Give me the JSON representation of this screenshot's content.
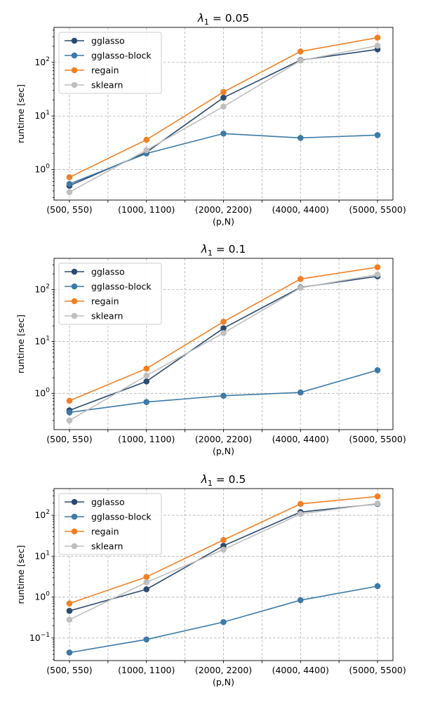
{
  "chart_data": [
    {
      "type": "line",
      "title_prefix": "λ",
      "title_sub": "1",
      "title_suffix": " = 0.05",
      "xlabel": "(p,N)",
      "ylabel": "runtime [sec]",
      "yscale": "log",
      "ylim": [
        0.27,
        450
      ],
      "yticks": [
        {
          "value": 1,
          "base": "10",
          "exp": "0"
        },
        {
          "value": 10,
          "base": "10",
          "exp": "1"
        },
        {
          "value": 100,
          "base": "10",
          "exp": "2"
        }
      ],
      "grid": true,
      "legend": "upper-left",
      "categories": [
        "(500, 550)",
        "(1000, 1100)",
        "(2000, 2200)",
        "(4000, 4400)",
        "(5000, 5500)"
      ],
      "series": [
        {
          "name": "gglasso",
          "color": "#2b4a6f",
          "values": [
            0.5,
            2.1,
            22,
            110,
            175
          ]
        },
        {
          "name": "gglasso-block",
          "color": "#3d7aa6",
          "values": [
            0.54,
            2.0,
            4.7,
            3.9,
            4.4
          ]
        },
        {
          "name": "regain",
          "color": "#f08025",
          "values": [
            0.72,
            3.6,
            28,
            160,
            290
          ]
        },
        {
          "name": "sklearn",
          "color": "#bfbfbf",
          "values": [
            0.38,
            2.3,
            15,
            108,
            205
          ]
        }
      ]
    },
    {
      "type": "line",
      "title_prefix": "λ",
      "title_sub": "1",
      "title_suffix": " = 0.1",
      "xlabel": "(p,N)",
      "ylabel": "runtime [sec]",
      "yscale": "log",
      "ylim": [
        0.2,
        400
      ],
      "yticks": [
        {
          "value": 1,
          "base": "10",
          "exp": "0"
        },
        {
          "value": 10,
          "base": "10",
          "exp": "1"
        },
        {
          "value": 100,
          "base": "10",
          "exp": "2"
        }
      ],
      "grid": true,
      "legend": "upper-left",
      "categories": [
        "(500, 550)",
        "(1000, 1100)",
        "(2000, 2200)",
        "(4000, 4400)",
        "(5000, 5500)"
      ],
      "series": [
        {
          "name": "gglasso",
          "color": "#2b4a6f",
          "values": [
            0.47,
            1.7,
            18,
            110,
            180
          ]
        },
        {
          "name": "gglasso-block",
          "color": "#3d7aa6",
          "values": [
            0.43,
            0.68,
            0.9,
            1.04,
            2.8
          ]
        },
        {
          "name": "regain",
          "color": "#f08025",
          "values": [
            0.72,
            3.0,
            24,
            160,
            270
          ]
        },
        {
          "name": "sklearn",
          "color": "#bfbfbf",
          "values": [
            0.3,
            2.2,
            14.5,
            108,
            195
          ]
        }
      ]
    },
    {
      "type": "line",
      "title_prefix": "λ",
      "title_sub": "1",
      "title_suffix": " = 0.5",
      "xlabel": "(p,N)",
      "ylabel": "runtime [sec]",
      "yscale": "log",
      "ylim": [
        0.028,
        450
      ],
      "yticks": [
        {
          "value": 0.1,
          "base": "10",
          "exp": "−1"
        },
        {
          "value": 1,
          "base": "10",
          "exp": "0"
        },
        {
          "value": 10,
          "base": "10",
          "exp": "1"
        },
        {
          "value": 100,
          "base": "10",
          "exp": "2"
        }
      ],
      "grid": true,
      "legend": "upper-left",
      "categories": [
        "(500, 550)",
        "(1000, 1100)",
        "(2000, 2200)",
        "(4000, 4400)",
        "(5000, 5500)"
      ],
      "series": [
        {
          "name": "gglasso",
          "color": "#2b4a6f",
          "values": [
            0.46,
            1.55,
            18,
            120,
            190
          ]
        },
        {
          "name": "gglasso-block",
          "color": "#3d7aa6",
          "values": [
            0.044,
            0.092,
            0.245,
            0.84,
            1.85
          ]
        },
        {
          "name": "regain",
          "color": "#f08025",
          "values": [
            0.7,
            3.1,
            25,
            190,
            290
          ]
        },
        {
          "name": "sklearn",
          "color": "#bfbfbf",
          "values": [
            0.28,
            2.3,
            14.5,
            108,
            195
          ]
        }
      ]
    }
  ]
}
